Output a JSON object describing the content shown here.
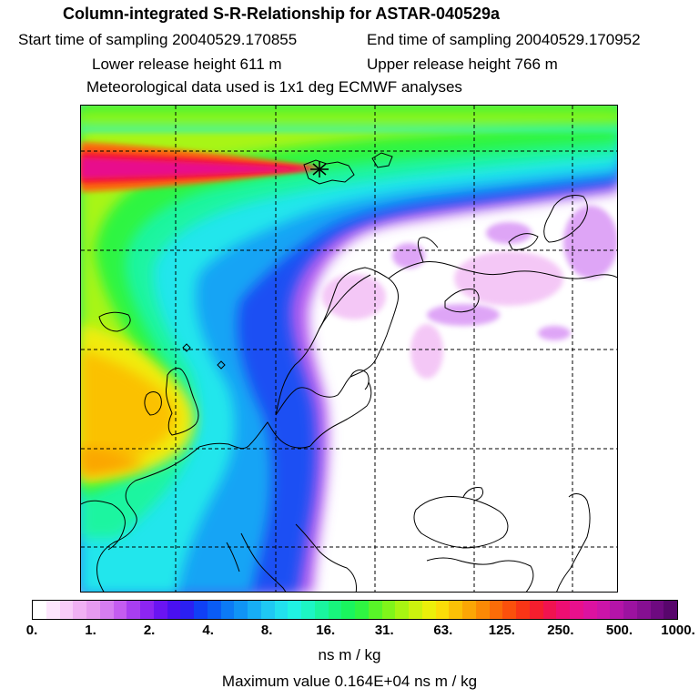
{
  "header": {
    "title": "Column-integrated S-R-Relationship for ASTAR-040529a",
    "start_time": "Start time of sampling 20040529.170855",
    "end_time": "End time of sampling 20040529.170952",
    "lower_height": "Lower release height  611 m",
    "upper_height": "Upper release height  766 m",
    "met_data": "Meteorological data used is 1x1 deg ECMWF analyses"
  },
  "map": {
    "grid": "dashed lat/lon lines",
    "release_marker": "star-icon"
  },
  "legend": {
    "colors": [
      "#ffffff",
      "#fde6fd",
      "#f8ccf8",
      "#f0b0f3",
      "#e69aef",
      "#d67df0",
      "#c45cf0",
      "#a83ef0",
      "#8d25f2",
      "#6a14f2",
      "#4a10f0",
      "#2b20f2",
      "#1040f5",
      "#0a5cf5",
      "#0c7af5",
      "#1094f5",
      "#17aef5",
      "#1fc8f3",
      "#22e0ee",
      "#20f3e3",
      "#1df6c4",
      "#1af59f",
      "#18f57c",
      "#1af55e",
      "#2ff542",
      "#58f528",
      "#80f51a",
      "#a8f512",
      "#ccf30e",
      "#ecf00a",
      "#fbdd08",
      "#fbc106",
      "#fba605",
      "#fb8905",
      "#fb6c08",
      "#fb500c",
      "#f93516",
      "#f51e2e",
      "#f01350",
      "#ee0e72",
      "#e8108c",
      "#dc12a0",
      "#cc14a8",
      "#b414a8",
      "#9c12a0",
      "#860f92",
      "#6e0a80",
      "#58066c"
    ],
    "tick_labels": [
      "0.",
      "1.",
      "2.",
      "4.",
      "8.",
      "16.",
      "31.",
      "63.",
      "125.",
      "250.",
      "500.",
      "1000."
    ],
    "units": "ns m / kg",
    "max_value": "Maximum value  0.164E+04 ns m / kg"
  }
}
